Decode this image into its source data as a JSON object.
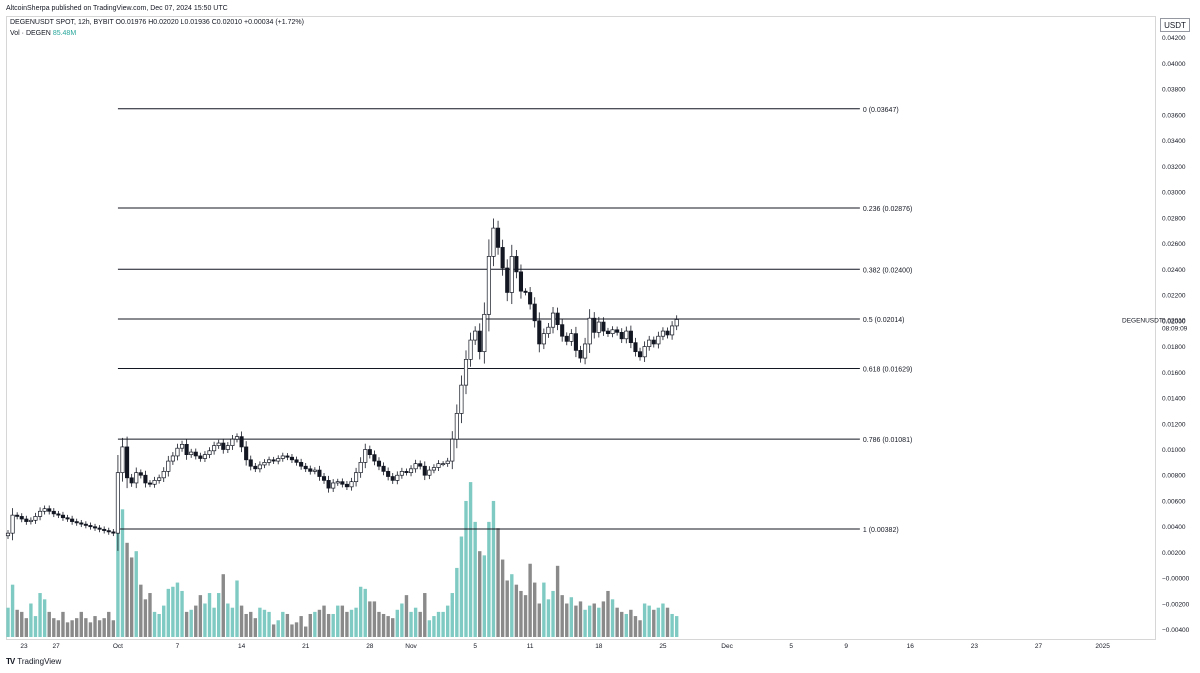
{
  "published_text": "AltcoinSherpa published on TradingView.com, Dec 07, 2024 15:50 UTC",
  "legend": {
    "symbol_line": "DEGENUSDT SPOT, 12h, BYBIT O0.01976 H0.02020 L0.01936 C0.02010 +0.00034 (+1.72%)",
    "vol_label": "Vol · DEGEN",
    "vol_value": "85.48M"
  },
  "currency": "USDT",
  "symbol_tag": "DEGENUSDT",
  "footer_brand": "TradingView",
  "chart_data": {
    "type": "candlestick",
    "symbol": "DEGENUSDT",
    "exchange": "BYBIT",
    "interval": "12h",
    "last": {
      "open": 0.01976,
      "high": 0.0202,
      "low": 0.01936,
      "close": 0.0201,
      "change": 0.00034,
      "change_pct": 1.72
    },
    "price_label": "0.02010",
    "countdown": "08:09:09",
    "price_axis": {
      "range": [
        -0.0048,
        0.0436
      ],
      "ticks": [
        "0.04200",
        "0.04000",
        "0.03800",
        "0.03600",
        "0.03400",
        "0.03200",
        "0.03000",
        "0.02800",
        "0.02600",
        "0.02400",
        "0.02200",
        "0.02000",
        "0.01800",
        "0.01600",
        "0.01400",
        "0.01200",
        "0.01000",
        "0.00800",
        "0.00600",
        "0.00400",
        "0.00200",
        "−0.00000",
        "−0.00200",
        "−0.00400"
      ]
    },
    "x_ticks": [
      "23",
      "27",
      "Oct",
      "7",
      "14",
      "21",
      "28",
      "Nov",
      "5",
      "11",
      "18",
      "25",
      "Dec",
      "5",
      "9",
      "16",
      "23",
      "27",
      "2025"
    ],
    "x_tick_index": [
      3.5,
      10.5,
      24,
      37,
      51,
      65,
      79,
      88,
      102,
      114,
      129,
      143,
      157,
      171,
      183,
      197,
      211,
      225,
      239
    ],
    "fib_levels": [
      {
        "ratio": "0",
        "value": 0.03647,
        "label": "0 (0.03647)"
      },
      {
        "ratio": "0.236",
        "value": 0.02876,
        "label": "0.236 (0.02876)"
      },
      {
        "ratio": "0.382",
        "value": 0.024,
        "label": "0.382 (0.02400)"
      },
      {
        "ratio": "0.5",
        "value": 0.02014,
        "label": "0.5 (0.02014)"
      },
      {
        "ratio": "0.618",
        "value": 0.01629,
        "label": "0.618 (0.01629)"
      },
      {
        "ratio": "0.786",
        "value": 0.01081,
        "label": "0.786 (0.01081)"
      },
      {
        "ratio": "1",
        "value": 0.00382,
        "label": "1 (0.00382)"
      }
    ],
    "fib_start_index": 24,
    "fib_end_index": 186,
    "closes": [
      0.0035,
      0.0049,
      0.0048,
      0.0046,
      0.0044,
      0.0045,
      0.0048,
      0.0052,
      0.0054,
      0.0052,
      0.005,
      0.0049,
      0.0047,
      0.0046,
      0.0044,
      0.0043,
      0.0042,
      0.0041,
      0.004,
      0.0039,
      0.0038,
      0.0037,
      0.0036,
      0.0035,
      0.0082,
      0.0102,
      0.0078,
      0.0074,
      0.0082,
      0.008,
      0.0074,
      0.0073,
      0.0076,
      0.0078,
      0.0083,
      0.0091,
      0.0095,
      0.0101,
      0.0104,
      0.0096,
      0.0098,
      0.0095,
      0.0093,
      0.0096,
      0.0099,
      0.0103,
      0.0105,
      0.01,
      0.0103,
      0.0108,
      0.011,
      0.0102,
      0.0092,
      0.0087,
      0.0085,
      0.0088,
      0.009,
      0.0092,
      0.0091,
      0.0093,
      0.0095,
      0.0094,
      0.0092,
      0.009,
      0.0087,
      0.0085,
      0.0083,
      0.0084,
      0.0079,
      0.0076,
      0.007,
      0.0074,
      0.0075,
      0.0073,
      0.0071,
      0.0075,
      0.0082,
      0.009,
      0.01,
      0.0096,
      0.0091,
      0.0087,
      0.0083,
      0.0079,
      0.0076,
      0.008,
      0.0083,
      0.0082,
      0.0085,
      0.0089,
      0.0087,
      0.008,
      0.0084,
      0.0086,
      0.0089,
      0.0089,
      0.0091,
      0.0108,
      0.0128,
      0.015,
      0.017,
      0.0185,
      0.0192,
      0.0176,
      0.0205,
      0.025,
      0.0272,
      0.0257,
      0.0241,
      0.0222,
      0.025,
      0.0238,
      0.0223,
      0.0222,
      0.0213,
      0.02,
      0.0182,
      0.019,
      0.0195,
      0.0206,
      0.0197,
      0.0188,
      0.0184,
      0.019,
      0.0177,
      0.0171,
      0.0182,
      0.0202,
      0.0191,
      0.0199,
      0.0192,
      0.019,
      0.0193,
      0.0191,
      0.0186,
      0.0192,
      0.0183,
      0.0176,
      0.0172,
      0.018,
      0.0185,
      0.0182,
      0.0188,
      0.0192,
      0.0189,
      0.0196,
      0.0201
    ],
    "volume_axis_max": 0.0075,
    "volumes": [
      0.0014,
      0.0025,
      0.0013,
      0.0012,
      0.0009,
      0.0016,
      0.001,
      0.0021,
      0.0018,
      0.0012,
      0.0009,
      0.0008,
      0.0012,
      0.0007,
      0.0008,
      0.0009,
      0.0012,
      0.0009,
      0.0007,
      0.001,
      0.0008,
      0.0009,
      0.0012,
      0.0008,
      0.007,
      0.0061,
      0.0045,
      0.0038,
      0.0041,
      0.0025,
      0.0018,
      0.0021,
      0.0012,
      0.0011,
      0.0015,
      0.0023,
      0.0024,
      0.0026,
      0.0022,
      0.0012,
      0.0013,
      0.0015,
      0.002,
      0.0016,
      0.0021,
      0.0014,
      0.0021,
      0.003,
      0.0016,
      0.0014,
      0.0027,
      0.0015,
      0.0011,
      0.0012,
      0.0009,
      0.0014,
      0.0013,
      0.0012,
      0.0006,
      0.0008,
      0.0012,
      0.0011,
      0.0006,
      0.0007,
      0.001,
      0.0005,
      0.0011,
      0.0012,
      0.0013,
      0.0015,
      0.0011,
      0.0011,
      0.0015,
      0.0015,
      0.0012,
      0.0013,
      0.0014,
      0.0024,
      0.0023,
      0.0017,
      0.0017,
      0.0012,
      0.0011,
      0.001,
      0.0009,
      0.0013,
      0.0016,
      0.002,
      0.0012,
      0.0014,
      0.0012,
      0.0021,
      0.0008,
      0.001,
      0.0012,
      0.0012,
      0.0015,
      0.0021,
      0.0033,
      0.0048,
      0.0065,
      0.0074,
      0.0055,
      0.0041,
      0.0039,
      0.0055,
      0.0065,
      0.0052,
      0.0037,
      0.0027,
      0.003,
      0.0025,
      0.0022,
      0.002,
      0.0035,
      0.0026,
      0.0016,
      0.0026,
      0.0018,
      0.0022,
      0.0034,
      0.002,
      0.0016,
      0.0019,
      0.0015,
      0.0017,
      0.0013,
      0.0015,
      0.0016,
      0.0014,
      0.0017,
      0.0022,
      0.0018,
      0.0014,
      0.0012,
      0.0011,
      0.0013,
      0.001,
      0.0008,
      0.0016,
      0.0015,
      0.0013,
      0.0014,
      0.0016,
      0.0014,
      0.0011,
      0.001
    ],
    "colors": {
      "up_candle": "#ffffff",
      "down_candle": "#131722",
      "candle_border": "#131722",
      "vol_up": "#7fcbc3",
      "vol_down": "#8a8a8a",
      "fib_line": "#131722"
    }
  }
}
